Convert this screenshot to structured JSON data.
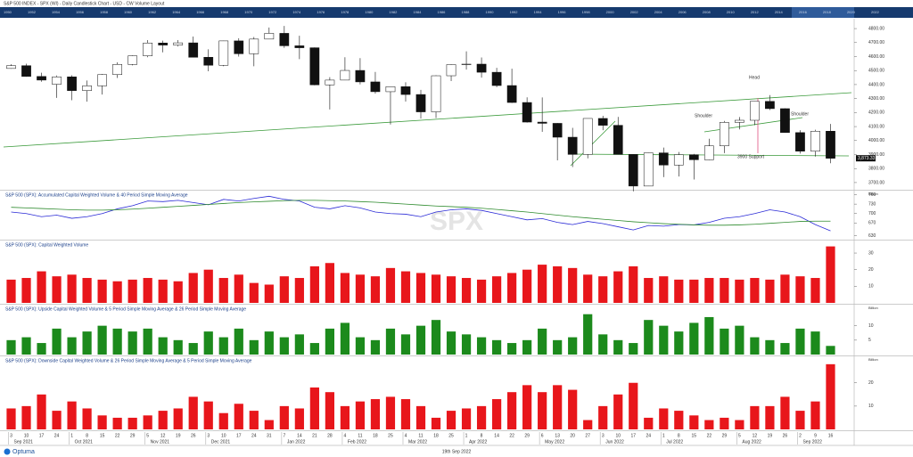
{
  "header_title": "S&P 500 INDEX - SPX (WI) - Daily Candlestick Chart - USD - CW Volume Layout",
  "timeline_years": [
    "1950",
    "1952",
    "1954",
    "1956",
    "1958",
    "1960",
    "1962",
    "1964",
    "1966",
    "1968",
    "1970",
    "1972",
    "1974",
    "1976",
    "1978",
    "1980",
    "1982",
    "1984",
    "1986",
    "1988",
    "1990",
    "1992",
    "1994",
    "1996",
    "1998",
    "2000",
    "2002",
    "2004",
    "2006",
    "2008",
    "2010",
    "2012",
    "2014",
    "2016",
    "2018",
    "2020",
    "2022"
  ],
  "watermark": "SPX",
  "x_axis": {
    "categories": [
      "3",
      "10",
      "17",
      "24",
      "1",
      "8",
      "15",
      "22",
      "29",
      "5",
      "12",
      "19",
      "26",
      "3",
      "10",
      "17",
      "24",
      "31",
      "7",
      "14",
      "21",
      "28",
      "4",
      "11",
      "18",
      "25",
      "4",
      "11",
      "18",
      "25",
      "1",
      "8",
      "14",
      "22",
      "29",
      "6",
      "13",
      "20",
      "27",
      "3",
      "10",
      "17",
      "24",
      "1",
      "8",
      "15",
      "22",
      "29",
      "5",
      "12",
      "19",
      "26",
      "2",
      "9",
      "16"
    ],
    "months": [
      "Sep 2021",
      "Oct 2021",
      "Nov 2021",
      "Dec 2021",
      "Jan 2022",
      "Feb 2022",
      "Mar 2022",
      "Apr 2022",
      "May 2022",
      "Jun 2022",
      "Jul 2022",
      "Aug 2022",
      "Sep 2022"
    ]
  },
  "annotations": {
    "head": "Head",
    "left_shoulder": "Shoulder",
    "right_shoulder": "Shoulder",
    "support": "3900 Support"
  },
  "footer": {
    "brand": "Optuma",
    "date": "19th Sep 2022"
  },
  "chart_data": [
    {
      "type": "candlestick",
      "last_label": "3,873.33",
      "open": [
        4515,
        4535,
        4458,
        4402,
        4455,
        4357,
        4391,
        4471,
        4544,
        4605,
        4697,
        4682,
        4698,
        4595,
        4538,
        4712,
        4620,
        4725,
        4766,
        4677,
        4663,
        4398,
        4432,
        4501,
        4419,
        4349,
        4385,
        4329,
        4205,
        4463,
        4543,
        4546,
        4488,
        4393,
        4272,
        4132,
        4123,
        4024,
        3901,
        4158,
        4109,
        3901,
        3675,
        3912,
        3825,
        3899,
        3863,
        3962,
        4130,
        4145,
        4280,
        4228,
        4057,
        3924,
        4067
      ],
      "high": [
        4545,
        4549,
        4485,
        4465,
        4466,
        4429,
        4475,
        4559,
        4608,
        4718,
        4714,
        4718,
        4743,
        4652,
        4713,
        4731,
        4740,
        4808,
        4819,
        4749,
        4665,
        4453,
        4595,
        4589,
        4490,
        4385,
        4416,
        4362,
        4466,
        4546,
        4637,
        4594,
        4520,
        4513,
        4309,
        4308,
        4125,
        4091,
        4158,
        4177,
        4169,
        3903,
        3913,
        3950,
        3918,
        3905,
        4013,
        4140,
        4168,
        4280,
        4325,
        4231,
        4074,
        4077,
        4119
      ],
      "low": [
        4513,
        4456,
        4420,
        4305,
        4288,
        4278,
        4329,
        4447,
        4537,
        4595,
        4630,
        4672,
        4594,
        4495,
        4531,
        4600,
        4531,
        4725,
        4662,
        4582,
        4395,
        4222,
        4431,
        4401,
        4335,
        4115,
        4279,
        4157,
        4161,
        4425,
        4507,
        4450,
        4381,
        4268,
        4128,
        4062,
        3859,
        3811,
        3873,
        4074,
        3900,
        3637,
        3675,
        3739,
        3743,
        3722,
        3861,
        3910,
        4080,
        4110,
        4218,
        4057,
        3907,
        3886,
        3838
      ],
      "close": [
        4535,
        4458,
        4432,
        4455,
        4357,
        4391,
        4471,
        4544,
        4605,
        4697,
        4682,
        4698,
        4595,
        4538,
        4712,
        4620,
        4725,
        4766,
        4677,
        4663,
        4398,
        4432,
        4501,
        4419,
        4349,
        4385,
        4329,
        4205,
        4463,
        4543,
        4546,
        4488,
        4393,
        4272,
        4132,
        4123,
        4024,
        3901,
        4158,
        4109,
        3901,
        3675,
        3912,
        3825,
        3899,
        3863,
        3962,
        4130,
        4145,
        4280,
        4228,
        4057,
        3924,
        4067,
        3873.33
      ],
      "ylim": [
        3655,
        4845
      ],
      "yticks": [
        {
          "value": 3700,
          "label": "3700.00"
        },
        {
          "value": 3800,
          "label": "3800.00"
        },
        {
          "value": 3900,
          "label": "3900.00"
        },
        {
          "value": 4000,
          "label": "4000.00"
        },
        {
          "value": 4100,
          "label": "4100.00"
        },
        {
          "value": 4200,
          "label": "4200.00"
        },
        {
          "value": 4300,
          "label": "4300.00"
        },
        {
          "value": 4400,
          "label": "4400.00"
        },
        {
          "value": 4500,
          "label": "4500.00"
        },
        {
          "value": 4600,
          "label": "4600.00"
        },
        {
          "value": 4700,
          "label": "4700.00"
        },
        {
          "value": 4800,
          "label": "4800.00"
        }
      ]
    },
    {
      "type": "line",
      "title": "S&P 500 (SPX): Accumulated Capital Weighted Volume & 40 Period Simple Moving Average",
      "unit": "Billion",
      "series": [
        {
          "name": "Accumulated Capital Weighted Volume",
          "color": "#2a2ad6",
          "values": [
            705,
            700,
            690,
            695,
            685,
            690,
            700,
            715,
            725,
            740,
            738,
            742,
            735,
            728,
            745,
            740,
            748,
            755,
            745,
            740,
            720,
            715,
            725,
            718,
            705,
            700,
            698,
            690,
            705,
            712,
            715,
            710,
            700,
            690,
            680,
            684,
            672,
            665,
            675,
            668,
            658,
            648,
            662,
            660,
            665,
            664,
            672,
            685,
            690,
            700,
            712,
            705,
            690,
            665,
            645
          ]
        },
        {
          "name": "40 Period Simple Moving Average",
          "color": "#2e8b2e",
          "values": [
            720,
            718,
            716,
            714,
            712,
            711,
            711,
            712,
            714,
            717,
            720,
            723,
            726,
            729,
            732,
            735,
            737,
            739,
            741,
            742,
            742,
            741,
            740,
            738,
            736,
            733,
            730,
            727,
            724,
            722,
            720,
            717,
            713,
            709,
            705,
            700,
            695,
            690,
            686,
            682,
            678,
            674,
            671,
            668,
            666,
            664,
            663,
            663,
            664,
            666,
            669,
            672,
            675,
            676,
            676
          ]
        }
      ],
      "ylim": [
        620,
        770
      ],
      "yticks": [
        630,
        670,
        700,
        730,
        760
      ]
    },
    {
      "type": "bar",
      "title": "S&P 500 (SPX): Capital Weighted Volume",
      "color": "#e8161b",
      "values": [
        14,
        15,
        19,
        16,
        17,
        15,
        14,
        13,
        14,
        15,
        14,
        13,
        18,
        20,
        15,
        17,
        12,
        11,
        16,
        15,
        22,
        24,
        18,
        17,
        16,
        21,
        19,
        18,
        17,
        16,
        15,
        14,
        16,
        18,
        20,
        23,
        22,
        21,
        17,
        16,
        19,
        22,
        15,
        16,
        14,
        14,
        15,
        15,
        14,
        15,
        14,
        17,
        16,
        15,
        34
      ],
      "ylim": [
        0,
        37
      ],
      "yticks": [
        10,
        20,
        30
      ]
    },
    {
      "type": "bar",
      "title": "S&P 500 (SPX): Upside Capital Weighted Volume & 5 Period Simple Moving Average & 26 Period Simple Moving Average",
      "color": "#1c8a1c",
      "unit": "Billion",
      "values": [
        5,
        6,
        4,
        9,
        6,
        8,
        10,
        9,
        8,
        9,
        6,
        5,
        4,
        8,
        6,
        9,
        5,
        8,
        6,
        7,
        4,
        9,
        11,
        6,
        5,
        9,
        7,
        10,
        12,
        8,
        7,
        6,
        5,
        4,
        5,
        9,
        5,
        6,
        14,
        7,
        5,
        4,
        12,
        10,
        8,
        11,
        13,
        9,
        10,
        6,
        5,
        4,
        9,
        8,
        3
      ],
      "ylim": [
        0,
        17
      ],
      "yticks": [
        5,
        10
      ]
    },
    {
      "type": "bar",
      "title": "S&P 500 (SPX): Downside Capital Weighted Volume & 26 Period Simple Moving Average & 5 Period Simple Moving Average",
      "color": "#e8161b",
      "unit": "Billion",
      "values": [
        9,
        10,
        15,
        8,
        12,
        9,
        6,
        5,
        5,
        6,
        8,
        9,
        14,
        12,
        7,
        11,
        8,
        4,
        10,
        9,
        18,
        16,
        10,
        12,
        13,
        14,
        13,
        10,
        5,
        8,
        9,
        10,
        13,
        16,
        19,
        16,
        19,
        17,
        4,
        10,
        15,
        20,
        5,
        9,
        8,
        6,
        4,
        5,
        4,
        10,
        10,
        14,
        8,
        12,
        28
      ],
      "ylim": [
        0,
        31
      ],
      "yticks": [
        10,
        20
      ]
    }
  ]
}
